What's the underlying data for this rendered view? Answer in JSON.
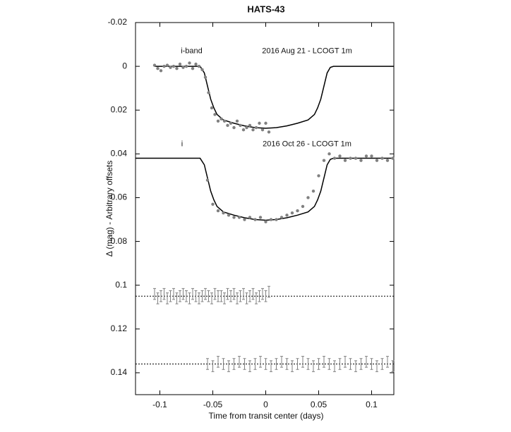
{
  "chart_data": {
    "type": "scatter",
    "title": "HATS-43",
    "x_label": "Time from transit center (days)",
    "y_label": "Δ (mag) - Arbitrary offsets",
    "xlim": [
      -0.123,
      0.121
    ],
    "ylim": [
      -0.02,
      0.15
    ],
    "y_inverted": true,
    "xticks": [
      -0.1,
      -0.05,
      0,
      0.05,
      0.1
    ],
    "yticks": [
      -0.02,
      0,
      0.02,
      0.04,
      0.06,
      0.08,
      0.1,
      0.12,
      0.14
    ],
    "annotations": [
      {
        "text": "i-band",
        "x": -0.07,
        "y": -0.007
      },
      {
        "text": "2016 Aug 21 - LCOGT 1m",
        "x": 0.039,
        "y": -0.007
      },
      {
        "text": "i",
        "x": -0.079,
        "y": 0.0355
      },
      {
        "text": "2016 Oct 26 - LCOGT 1m",
        "x": 0.039,
        "y": 0.0355
      }
    ],
    "hlines": [
      0.105,
      0.136
    ],
    "series": [
      {
        "style": "line",
        "color": "#000000",
        "x": [
          -0.105,
          -0.062,
          -0.058,
          -0.055,
          -0.052,
          -0.049,
          -0.046,
          -0.04,
          -0.03,
          -0.02,
          -0.01,
          0,
          0.01,
          0.02,
          0.03,
          0.04,
          0.046,
          0.049,
          0.052,
          0.055,
          0.058,
          0.061,
          0.064,
          0.121
        ],
        "values": [
          0,
          0,
          0.003,
          0.009,
          0.015,
          0.019,
          0.022,
          0.0245,
          0.026,
          0.0272,
          0.028,
          0.0283,
          0.028,
          0.0272,
          0.026,
          0.0245,
          0.022,
          0.019,
          0.015,
          0.009,
          0.003,
          0.0005,
          0,
          0
        ]
      },
      {
        "style": "line",
        "color": "#000000",
        "x": [
          -0.123,
          -0.062,
          -0.058,
          -0.055,
          -0.052,
          -0.049,
          -0.046,
          -0.04,
          -0.03,
          -0.02,
          -0.01,
          0,
          0.01,
          0.02,
          0.03,
          0.04,
          0.046,
          0.049,
          0.052,
          0.055,
          0.058,
          0.061,
          0.064,
          0.121
        ],
        "values": [
          0.042,
          0.042,
          0.045,
          0.051,
          0.057,
          0.061,
          0.064,
          0.0665,
          0.068,
          0.0692,
          0.07,
          0.0703,
          0.07,
          0.0692,
          0.068,
          0.0665,
          0.064,
          0.061,
          0.057,
          0.051,
          0.045,
          0.0425,
          0.042,
          0.042
        ]
      },
      {
        "style": "points",
        "color": "#808080",
        "x": [
          -0.105,
          -0.102,
          -0.099,
          -0.096,
          -0.093,
          -0.09,
          -0.087,
          -0.084,
          -0.081,
          -0.078,
          -0.075,
          -0.072,
          -0.069,
          -0.066,
          -0.063,
          -0.06,
          -0.057,
          -0.054,
          -0.051,
          -0.048,
          -0.045,
          -0.042,
          -0.039,
          -0.036,
          -0.033,
          -0.03,
          -0.027,
          -0.024,
          -0.021,
          -0.018,
          -0.015,
          -0.012,
          -0.009,
          -0.006,
          -0.003,
          0,
          0.003
        ],
        "values": [
          -0.0005,
          0.001,
          0.002,
          0,
          -0.0005,
          0.0005,
          0,
          0.001,
          -0.001,
          0.0005,
          0,
          -0.0015,
          0.001,
          -0.001,
          0,
          0.0015,
          0.005,
          0.012,
          0.019,
          0.022,
          0.025,
          0.024,
          0.025,
          0.027,
          0.026,
          0.028,
          0.025,
          0.027,
          0.029,
          0.028,
          0.027,
          0.029,
          0.028,
          0.026,
          0.029,
          0.026,
          0.03
        ]
      },
      {
        "style": "points",
        "color": "#808080",
        "x": [
          -0.055,
          -0.05,
          -0.045,
          -0.04,
          -0.035,
          -0.03,
          -0.025,
          -0.02,
          -0.015,
          -0.01,
          -0.005,
          0,
          0.005,
          0.01,
          0.015,
          0.02,
          0.025,
          0.03,
          0.035,
          0.04,
          0.045,
          0.05,
          0.055,
          0.06,
          0.065,
          0.07,
          0.075,
          0.08,
          0.085,
          0.09,
          0.095,
          0.1,
          0.105,
          0.11,
          0.115,
          0.12
        ],
        "values": [
          0.052,
          0.063,
          0.066,
          0.067,
          0.068,
          0.069,
          0.069,
          0.07,
          0.069,
          0.07,
          0.069,
          0.071,
          0.07,
          0.07,
          0.069,
          0.068,
          0.067,
          0.066,
          0.064,
          0.06,
          0.057,
          0.05,
          0.043,
          0.04,
          0.042,
          0.041,
          0.043,
          0.042,
          0.042,
          0.043,
          0.041,
          0.041,
          0.043,
          0.042,
          0.043,
          0.042
        ]
      },
      {
        "style": "errorbar",
        "color": "#808080",
        "error": 0.0025,
        "x": [
          -0.105,
          -0.102,
          -0.099,
          -0.096,
          -0.093,
          -0.09,
          -0.087,
          -0.084,
          -0.081,
          -0.078,
          -0.075,
          -0.072,
          -0.069,
          -0.066,
          -0.063,
          -0.06,
          -0.057,
          -0.054,
          -0.051,
          -0.048,
          -0.045,
          -0.042,
          -0.039,
          -0.036,
          -0.033,
          -0.03,
          -0.027,
          -0.024,
          -0.021,
          -0.018,
          -0.015,
          -0.012,
          -0.009,
          -0.006,
          -0.003,
          0,
          0.003
        ],
        "values": [
          0.104,
          0.106,
          0.105,
          0.104,
          0.106,
          0.105,
          0.104,
          0.106,
          0.105,
          0.104,
          0.105,
          0.106,
          0.104,
          0.105,
          0.106,
          0.105,
          0.104,
          0.105,
          0.106,
          0.104,
          0.105,
          0.105,
          0.106,
          0.104,
          0.105,
          0.104,
          0.106,
          0.105,
          0.104,
          0.106,
          0.105,
          0.104,
          0.106,
          0.105,
          0.104,
          0.105,
          0.103
        ]
      },
      {
        "style": "errorbar",
        "color": "#808080",
        "error": 0.0025,
        "x": [
          -0.055,
          -0.05,
          -0.045,
          -0.04,
          -0.035,
          -0.03,
          -0.025,
          -0.02,
          -0.015,
          -0.01,
          -0.005,
          0,
          0.005,
          0.01,
          0.015,
          0.02,
          0.025,
          0.03,
          0.035,
          0.04,
          0.045,
          0.05,
          0.055,
          0.06,
          0.065,
          0.07,
          0.075,
          0.08,
          0.085,
          0.09,
          0.095,
          0.1,
          0.105,
          0.11,
          0.115,
          0.12
        ],
        "values": [
          0.136,
          0.137,
          0.135,
          0.136,
          0.137,
          0.136,
          0.135,
          0.136,
          0.137,
          0.136,
          0.135,
          0.136,
          0.137,
          0.136,
          0.135,
          0.136,
          0.137,
          0.136,
          0.135,
          0.136,
          0.137,
          0.136,
          0.135,
          0.136,
          0.137,
          0.136,
          0.135,
          0.136,
          0.137,
          0.136,
          0.135,
          0.136,
          0.137,
          0.136,
          0.135,
          0.137
        ]
      }
    ]
  }
}
